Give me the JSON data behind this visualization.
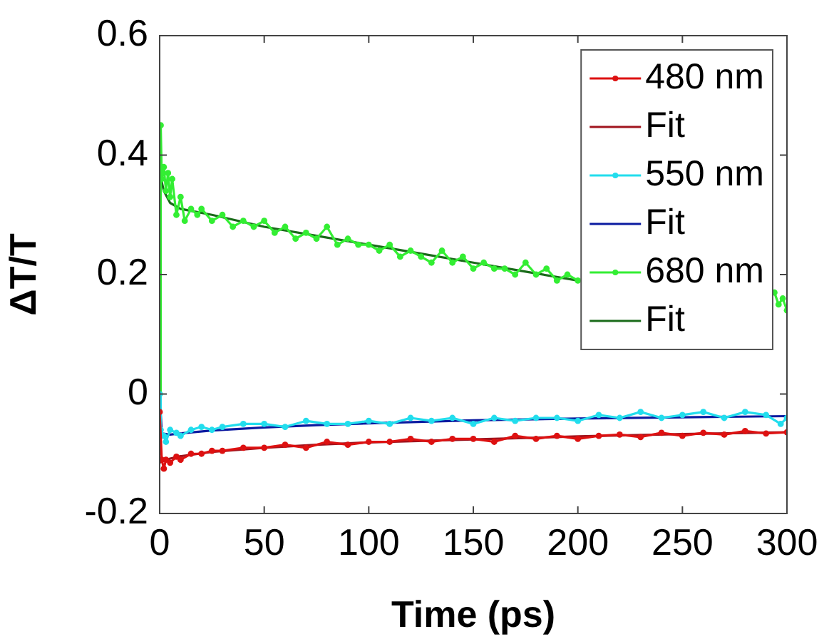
{
  "chart_data": {
    "type": "line",
    "xlabel": "Time (ps)",
    "ylabel": "ΔT/T",
    "xlim": [
      0,
      300
    ],
    "xticks": [
      0,
      50,
      100,
      150,
      200,
      250,
      300
    ],
    "ylim": [
      -0.2,
      0.6
    ],
    "yticks": [
      -0.2,
      0,
      0.2,
      0.4,
      0.6
    ],
    "grid": false,
    "legend": "top right",
    "series": [
      {
        "name": "480 nm",
        "color": "#dd1111",
        "marker": "circle",
        "x": [
          0,
          1,
          2,
          3,
          5,
          8,
          10,
          15,
          20,
          25,
          30,
          40,
          50,
          60,
          70,
          80,
          90,
          100,
          110,
          120,
          130,
          140,
          150,
          160,
          170,
          180,
          190,
          200,
          210,
          220,
          230,
          240,
          250,
          260,
          270,
          280,
          290,
          300
        ],
        "values": [
          -0.03,
          -0.11,
          -0.125,
          -0.11,
          -0.115,
          -0.105,
          -0.11,
          -0.1,
          -0.1,
          -0.095,
          -0.095,
          -0.09,
          -0.09,
          -0.085,
          -0.09,
          -0.08,
          -0.085,
          -0.08,
          -0.08,
          -0.075,
          -0.08,
          -0.075,
          -0.075,
          -0.08,
          -0.07,
          -0.075,
          -0.07,
          -0.075,
          -0.07,
          -0.068,
          -0.072,
          -0.065,
          -0.07,
          -0.065,
          -0.068,
          -0.062,
          -0.066,
          -0.064
        ]
      },
      {
        "name": "Fit",
        "color": "#a0141e",
        "marker": "none",
        "x": [
          0,
          1,
          5,
          10,
          25,
          50,
          75,
          100,
          150,
          200,
          250,
          300
        ],
        "values": [
          -0.115,
          -0.113,
          -0.108,
          -0.104,
          -0.097,
          -0.09,
          -0.085,
          -0.081,
          -0.076,
          -0.071,
          -0.067,
          -0.064
        ]
      },
      {
        "name": "550 nm",
        "color": "#22dded",
        "marker": "circle",
        "x": [
          0,
          0.5,
          2,
          3,
          5,
          8,
          10,
          15,
          20,
          25,
          30,
          40,
          50,
          60,
          70,
          80,
          90,
          100,
          110,
          120,
          130,
          140,
          150,
          160,
          170,
          180,
          190,
          200,
          210,
          220,
          230,
          240,
          250,
          260,
          270,
          280,
          290,
          297,
          300
        ],
        "values": [
          0,
          -0.06,
          -0.07,
          -0.08,
          -0.06,
          -0.065,
          -0.07,
          -0.06,
          -0.055,
          -0.06,
          -0.055,
          -0.05,
          -0.05,
          -0.055,
          -0.045,
          -0.05,
          -0.05,
          -0.045,
          -0.05,
          -0.04,
          -0.045,
          -0.04,
          -0.05,
          -0.04,
          -0.045,
          -0.04,
          -0.04,
          -0.045,
          -0.035,
          -0.04,
          -0.03,
          -0.04,
          -0.035,
          -0.03,
          -0.04,
          -0.03,
          -0.035,
          -0.05,
          -0.04
        ]
      },
      {
        "name": "Fit",
        "color": "#0a1aa0",
        "marker": "none",
        "x": [
          0,
          1,
          5,
          10,
          25,
          50,
          75,
          100,
          150,
          200,
          250,
          300
        ],
        "values": [
          0,
          -0.066,
          -0.068,
          -0.066,
          -0.061,
          -0.056,
          -0.052,
          -0.049,
          -0.044,
          -0.041,
          -0.039,
          -0.037
        ]
      },
      {
        "name": "680 nm",
        "color": "#33ee33",
        "marker": "circle",
        "x": [
          0,
          0.5,
          1,
          2,
          3,
          4,
          5,
          6,
          8,
          10,
          12,
          15,
          18,
          20,
          25,
          30,
          35,
          40,
          45,
          50,
          55,
          60,
          65,
          70,
          75,
          80,
          85,
          90,
          95,
          100,
          105,
          110,
          115,
          120,
          125,
          130,
          135,
          140,
          145,
          150,
          155,
          160,
          165,
          170,
          175,
          180,
          185,
          190,
          195,
          200,
          205,
          292,
          294,
          296,
          298,
          300
        ],
        "values": [
          0,
          0.45,
          0.36,
          0.38,
          0.34,
          0.37,
          0.33,
          0.36,
          0.3,
          0.33,
          0.29,
          0.31,
          0.3,
          0.31,
          0.29,
          0.3,
          0.28,
          0.29,
          0.28,
          0.29,
          0.27,
          0.28,
          0.26,
          0.27,
          0.26,
          0.28,
          0.25,
          0.26,
          0.25,
          0.25,
          0.24,
          0.25,
          0.23,
          0.24,
          0.23,
          0.22,
          0.24,
          0.22,
          0.23,
          0.21,
          0.22,
          0.21,
          0.21,
          0.2,
          0.22,
          0.2,
          0.21,
          0.19,
          0.2,
          0.19,
          null,
          0.17,
          0.17,
          0.15,
          0.16,
          0.14
        ]
      },
      {
        "name": "Fit",
        "color": "#1a6b1a",
        "marker": "none",
        "x": [
          0,
          2,
          5,
          10,
          25,
          50,
          75,
          100,
          125,
          150,
          175,
          200
        ],
        "values": [
          0.37,
          0.34,
          0.32,
          0.31,
          0.3,
          0.28,
          0.265,
          0.25,
          0.235,
          0.22,
          0.205,
          0.19
        ]
      }
    ]
  }
}
